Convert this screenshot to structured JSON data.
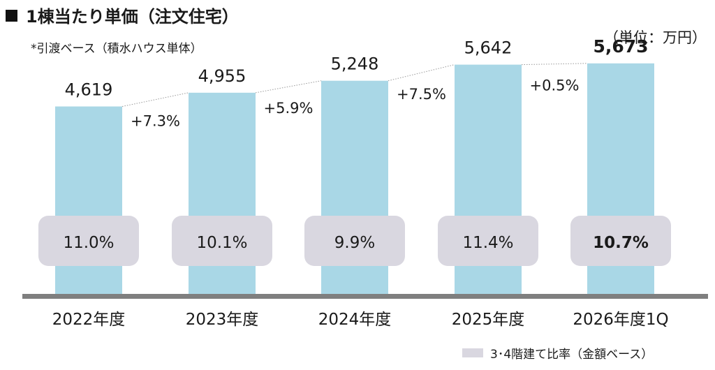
{
  "title": "1棟当たり単価（注文住宅）",
  "subtitle": "*引渡ベース（積水ハウス単体）",
  "unit_label": "（単位：万円）",
  "legend": {
    "ratio_label": "3･4階建て比率（金額ベース）"
  },
  "colors": {
    "bar": "#a9d7e6",
    "ratio_box": "#d9d7e0",
    "baseline": "#7f7f7f",
    "connector": "#999999"
  },
  "chart_data": {
    "type": "bar",
    "categories": [
      "2022年度",
      "2023年度",
      "2024年度",
      "2025年度",
      "2026年度1Q"
    ],
    "values": [
      4619,
      4955,
      5248,
      5642,
      5673
    ],
    "value_labels": [
      "4,619",
      "4,955",
      "5,248",
      "5,642",
      "5,673"
    ],
    "growth_labels": [
      "+7.3%",
      "+5.9%",
      "+7.5%",
      "+0.5%"
    ],
    "ratio_series": {
      "name": "3･4階建て比率（金額ベース）",
      "labels": [
        "11.0%",
        "10.1%",
        "9.9%",
        "11.4%",
        "10.7%"
      ],
      "values": [
        11.0,
        10.1,
        9.9,
        11.4,
        10.7
      ]
    },
    "highlight_index": 4,
    "ylabel": "（単位：万円）",
    "ylim": [
      0,
      6200
    ]
  }
}
